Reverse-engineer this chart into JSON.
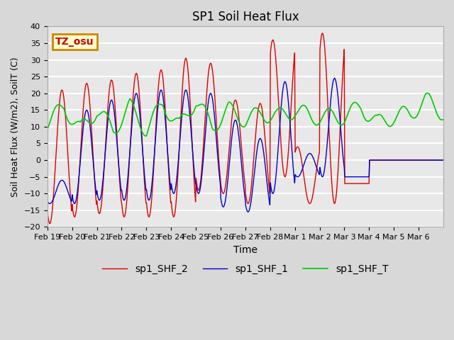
{
  "title": "SP1 Soil Heat Flux",
  "xlabel": "Time",
  "ylabel": "Soil Heat Flux (W/m2), SoilT (C)",
  "ylim": [
    -20,
    40
  ],
  "yticks": [
    -20,
    -15,
    -10,
    -5,
    0,
    5,
    10,
    15,
    20,
    25,
    30,
    35,
    40
  ],
  "background_color": "#e8e8e8",
  "grid_color": "#ffffff",
  "legend_labels": [
    "sp1_SHF_2",
    "sp1_SHF_1",
    "sp1_SHF_T"
  ],
  "legend_colors": [
    "#dd0000",
    "#0000cc",
    "#00cc00"
  ],
  "annotation_text": "TZ_osu",
  "annotation_bg": "#ffffcc",
  "annotation_border": "#cc8800",
  "annotation_text_color": "#cc0000",
  "xtick_labels": [
    "Feb 19",
    "Feb 20",
    "Feb 21",
    "Feb 22",
    "Feb 23",
    "Feb 24",
    "Feb 25",
    "Feb 26",
    "Feb 27",
    "Feb 28",
    "Mar 1",
    "Mar 2",
    "Mar 3",
    "Mar 4",
    "Mar 5",
    "Mar 6"
  ],
  "n_days": 16,
  "shf2_peak_trough": [
    21,
    -19,
    23,
    -17,
    24,
    -16,
    26,
    -17,
    27,
    -17,
    30.5,
    -17,
    29,
    -9,
    18,
    -10,
    17,
    -13,
    -5,
    36,
    -13,
    4,
    -13,
    38,
    -7,
    -7
  ],
  "shf1_peak_trough": [
    -6,
    -13,
    15,
    -13,
    18,
    -12,
    20,
    -12,
    21,
    -12,
    21,
    -10,
    20,
    -10,
    12,
    -14,
    6.5,
    -15.5,
    23.5,
    -10,
    2,
    -5,
    24.5,
    -5,
    -5,
    -5
  ],
  "shft_nodes": [
    11,
    16,
    9,
    15,
    9,
    16,
    9,
    17,
    10,
    18,
    10,
    15,
    12,
    14,
    13,
    15,
    13,
    13,
    13,
    16,
    11,
    13,
    14,
    18,
    14
  ]
}
